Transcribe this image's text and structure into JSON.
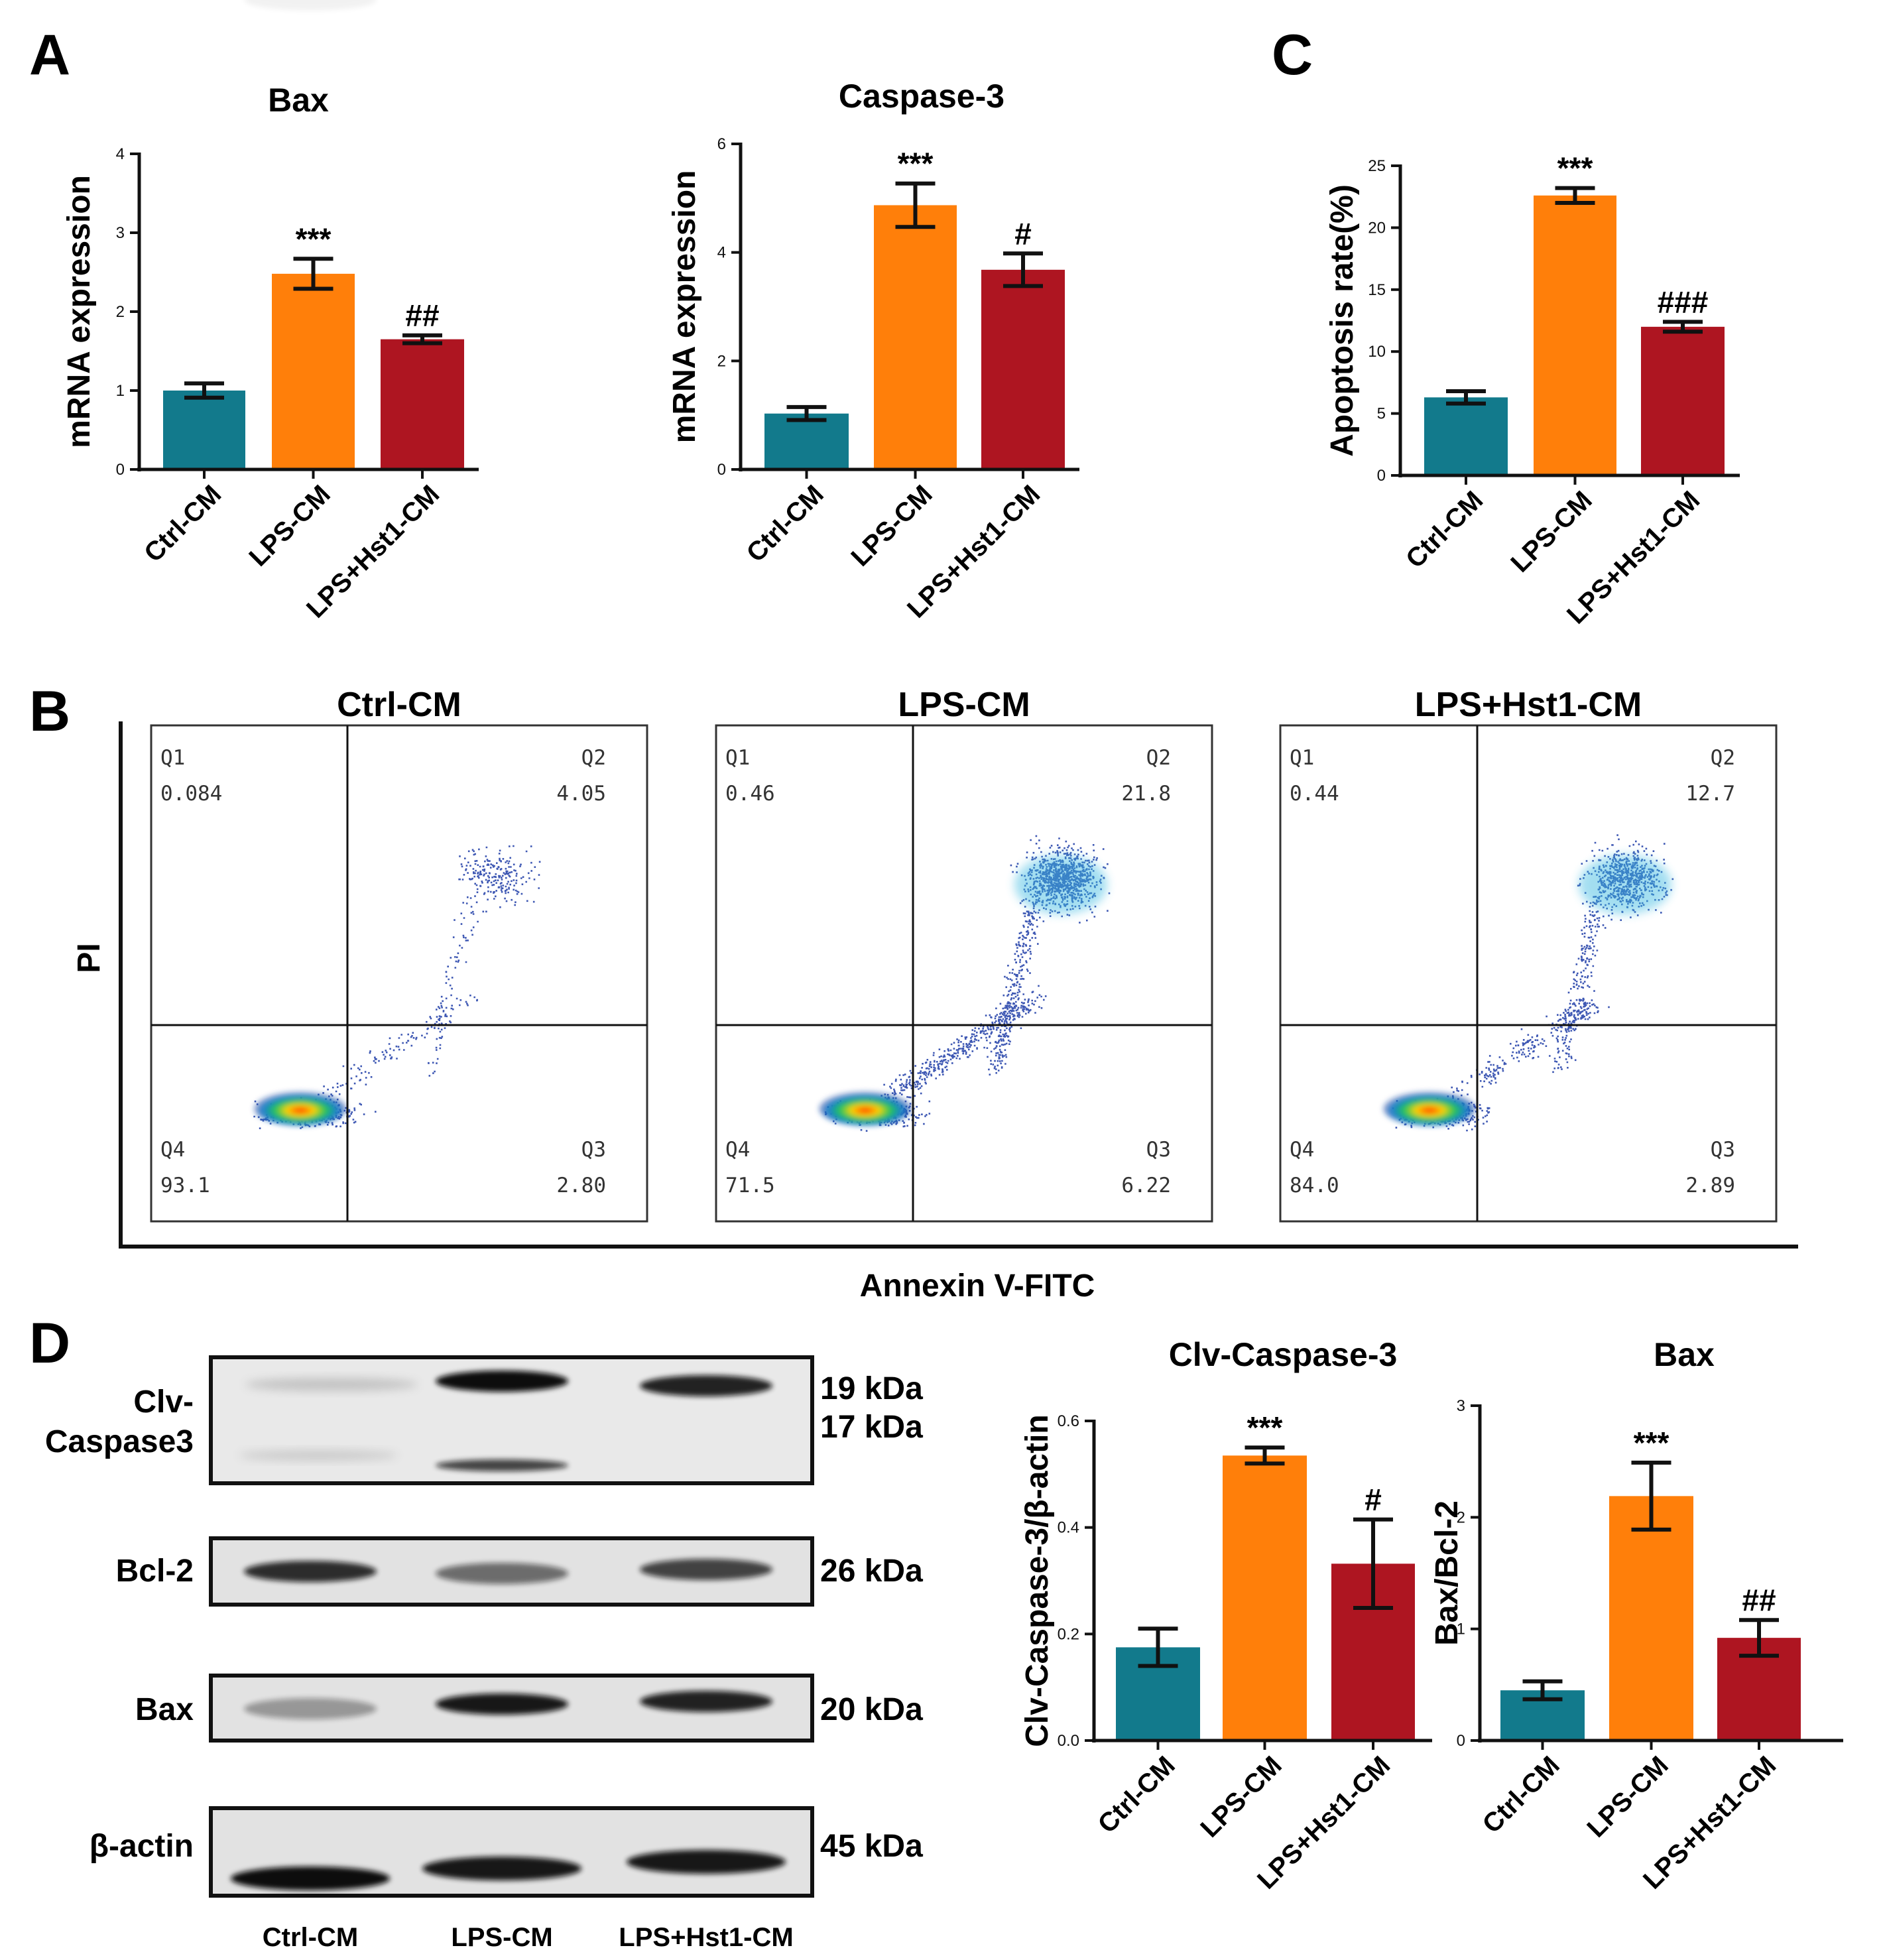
{
  "panels": {
    "A": "A",
    "B": "B",
    "C": "C",
    "D": "D"
  },
  "colors": {
    "ctrl": "#127a8c",
    "lps": "#ff7f0a",
    "hst": "#ae1521"
  },
  "chart_data": [
    {
      "id": "bar-bax-mrna",
      "type": "bar",
      "panel": "A",
      "title": "Bax",
      "ylabel": "mRNA expression",
      "categories": [
        "Ctrl-CM",
        "LPS-CM",
        "LPS+Hst1-CM"
      ],
      "values": [
        1.0,
        2.48,
        1.65
      ],
      "errors": [
        0.09,
        0.19,
        0.05
      ],
      "significance": [
        "",
        "***",
        "##"
      ],
      "ylim": [
        0,
        4
      ],
      "yticks": [
        0,
        1,
        2,
        3,
        4
      ],
      "ytick_labels": [
        "0",
        "1",
        "2",
        "3",
        "4"
      ]
    },
    {
      "id": "bar-caspase3-mrna",
      "type": "bar",
      "panel": "A",
      "title": "Caspase-3",
      "ylabel": "mRNA expression",
      "categories": [
        "Ctrl-CM",
        "LPS-CM",
        "LPS+Hst1-CM"
      ],
      "values": [
        1.03,
        4.87,
        3.68
      ],
      "errors": [
        0.12,
        0.4,
        0.3
      ],
      "significance": [
        "",
        "***",
        "#"
      ],
      "ylim": [
        0,
        6
      ],
      "yticks": [
        0,
        2,
        4,
        6
      ],
      "ytick_labels": [
        "0",
        "2",
        "4",
        "6"
      ]
    },
    {
      "id": "bar-apoptosis",
      "type": "bar",
      "panel": "C",
      "title": "",
      "ylabel": "Apoptosis rate(%)",
      "categories": [
        "Ctrl-CM",
        "LPS-CM",
        "LPS+Hst1-CM"
      ],
      "values": [
        6.3,
        22.6,
        12.0
      ],
      "errors": [
        0.5,
        0.6,
        0.4
      ],
      "significance": [
        "",
        "***",
        "###"
      ],
      "ylim": [
        0,
        25
      ],
      "yticks": [
        0,
        5,
        10,
        15,
        20,
        25
      ],
      "ytick_labels": [
        "0",
        "5",
        "10",
        "15",
        "20",
        "25"
      ]
    },
    {
      "id": "bar-clv-caspase3",
      "type": "bar",
      "panel": "D",
      "title": "Clv-Caspase-3",
      "ylabel": "Clv-Caspase-3/β-actin",
      "categories": [
        "Ctrl-CM",
        "LPS-CM",
        "LPS+Hst1-CM"
      ],
      "values": [
        0.175,
        0.535,
        0.332
      ],
      "errors": [
        0.035,
        0.015,
        0.083
      ],
      "significance": [
        "",
        "***",
        "#"
      ],
      "ylim": [
        0,
        0.6
      ],
      "yticks": [
        0,
        0.2,
        0.4,
        0.6
      ],
      "ytick_labels": [
        "0.0",
        "0.2",
        "0.4",
        "0.6"
      ]
    },
    {
      "id": "bar-bax-bcl2",
      "type": "bar",
      "panel": "D",
      "title": "Bax",
      "ylabel": "Bax/Bcl-2",
      "categories": [
        "Ctrl-CM",
        "LPS-CM",
        "LPS+Hst1-CM"
      ],
      "values": [
        0.45,
        2.19,
        0.92
      ],
      "errors": [
        0.08,
        0.3,
        0.16
      ],
      "significance": [
        "",
        "***",
        "##"
      ],
      "ylim": [
        0,
        3
      ],
      "yticks": [
        0,
        1,
        2,
        3
      ],
      "ytick_labels": [
        "0",
        "1",
        "2",
        "3"
      ]
    },
    {
      "id": "flow-cytometry",
      "type": "scatter",
      "panel": "B",
      "xlabel": "Annexin V-FITC",
      "ylabel": "PI",
      "plots": [
        {
          "title": "Ctrl-CM",
          "quadrants": {
            "Q1": "0.084",
            "Q2": "4.05",
            "Q3": "2.80",
            "Q4": "93.1"
          }
        },
        {
          "title": "LPS-CM",
          "quadrants": {
            "Q1": "0.46",
            "Q2": "21.8",
            "Q3": "6.22",
            "Q4": "71.5"
          }
        },
        {
          "title": "LPS+Hst1-CM",
          "quadrants": {
            "Q1": "0.44",
            "Q2": "12.7",
            "Q3": "2.89",
            "Q4": "84.0"
          }
        }
      ]
    }
  ],
  "western_blot": {
    "lanes": [
      "Ctrl-CM",
      "LPS-CM",
      "LPS+Hst1-CM"
    ],
    "rows": [
      {
        "name_line1": "Clv-",
        "name_line2": "Caspase3",
        "kda": [
          "19 kDa",
          "17 kDa"
        ]
      },
      {
        "name_line1": "Bcl-2",
        "name_line2": "",
        "kda": [
          "26 kDa"
        ]
      },
      {
        "name_line1": "Bax",
        "name_line2": "",
        "kda": [
          "20 kDa"
        ]
      },
      {
        "name_line1": "β-actin",
        "name_line2": "",
        "kda": [
          "45 kDa"
        ]
      }
    ]
  }
}
